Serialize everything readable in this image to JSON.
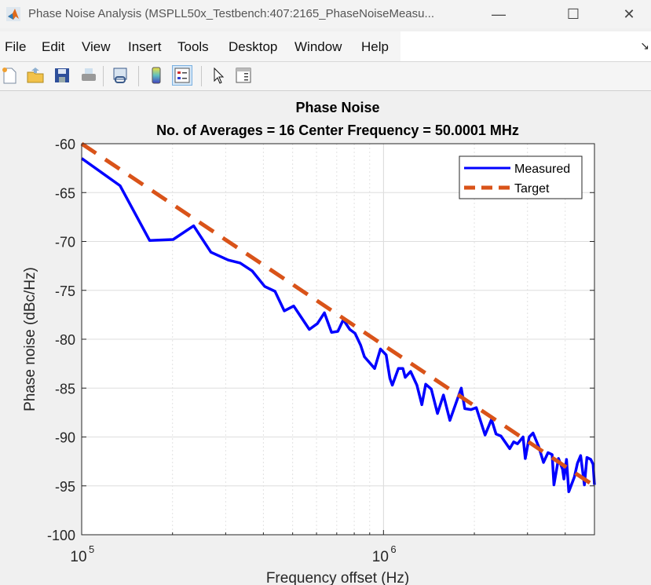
{
  "window": {
    "title": "Phase Noise Analysis (MSPLL50x_Testbench:407:2165_PhaseNoiseMeasu...",
    "minimize": "—",
    "maximize": "☐",
    "close": "✕"
  },
  "menu": [
    "File",
    "Edit",
    "View",
    "Insert",
    "Tools",
    "Desktop",
    "Window",
    "Help"
  ],
  "toolbar": [
    "new-figure-icon",
    "open-icon",
    "save-icon",
    "print-icon",
    "link-plot-icon",
    "colorbar-icon",
    "legend-icon",
    "pointer-icon",
    "property-inspector-icon"
  ],
  "chart_data": {
    "type": "line",
    "title": "Phase Noise",
    "subtitle": "No. of Averages = 16 Center Frequency = 50.0001 MHz",
    "xlabel": "Frequency offset (Hz)",
    "ylabel": "Phase noise (dBc/Hz)",
    "xscale": "log",
    "xlim": [
      100000,
      5000000
    ],
    "ylim": [
      -100,
      -60
    ],
    "xticks": [
      {
        "value": 100000,
        "base": "10",
        "exp": "5"
      },
      {
        "value": 1000000,
        "base": "10",
        "exp": "6"
      }
    ],
    "yticks": [
      -60,
      -65,
      -70,
      -75,
      -80,
      -85,
      -90,
      -95,
      -100
    ],
    "grid": true,
    "legend_position": "top-right",
    "series": [
      {
        "name": "Measured",
        "color": "#0000ff",
        "style": "solid",
        "x": [
          100000,
          134000,
          168000,
          201000,
          235000,
          268000,
          306000,
          335000,
          367000,
          404000,
          437000,
          469000,
          504000,
          568000,
          604000,
          637000,
          673000,
          706000,
          736000,
          773000,
          805000,
          840000,
          865000,
          935000,
          977000,
          1020000,
          1050000,
          1070000,
          1120000,
          1160000,
          1180000,
          1230000,
          1290000,
          1340000,
          1380000,
          1440000,
          1510000,
          1580000,
          1660000,
          1810000,
          1860000,
          1950000,
          2030000,
          2170000,
          2280000,
          2360000,
          2450000,
          2620000,
          2700000,
          2780000,
          2900000,
          2950000,
          3040000,
          3130000,
          3270000,
          3390000,
          3510000,
          3620000,
          3670000,
          3800000,
          3920000,
          3960000,
          4040000,
          4110000,
          4290000,
          4390000,
          4500000,
          4630000,
          4720000,
          4860000,
          4950000,
          5000000
        ],
        "y": [
          -61.5,
          -64.3,
          -69.9,
          -69.8,
          -68.4,
          -71.1,
          -71.9,
          -72.2,
          -73.0,
          -74.6,
          -75.1,
          -77.1,
          -76.6,
          -79.0,
          -78.4,
          -77.3,
          -79.3,
          -79.2,
          -78.0,
          -79.0,
          -79.4,
          -80.6,
          -81.8,
          -83.0,
          -81.0,
          -81.6,
          -84.0,
          -84.7,
          -83.0,
          -83.0,
          -83.9,
          -83.3,
          -84.7,
          -86.7,
          -84.6,
          -85.1,
          -87.6,
          -85.7,
          -88.3,
          -85.0,
          -87.1,
          -87.2,
          -87.0,
          -89.8,
          -88.2,
          -89.7,
          -89.9,
          -91.2,
          -90.5,
          -90.7,
          -90.0,
          -92.2,
          -90.0,
          -89.6,
          -91.0,
          -92.6,
          -91.6,
          -91.8,
          -94.9,
          -92.2,
          -93.3,
          -94.3,
          -92.3,
          -95.6,
          -94.1,
          -92.7,
          -91.9,
          -94.9,
          -92.1,
          -92.3,
          -92.8,
          -94.9
        ]
      },
      {
        "name": "Target",
        "color": "#d95319",
        "style": "dashed",
        "x": [
          100000,
          5000000
        ],
        "y": [
          -60,
          -95
        ]
      }
    ]
  }
}
